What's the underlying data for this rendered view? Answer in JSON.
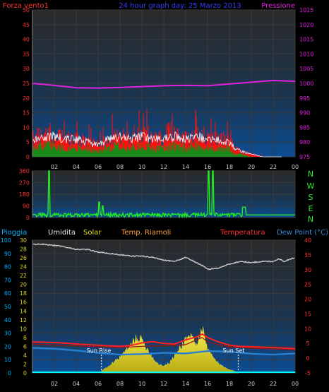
{
  "header": {
    "left_label": "Forza vento1",
    "title": "24 hour graph day:  25 Marzo 2013",
    "right_label": "Pressione"
  },
  "compass": [
    "N",
    "W",
    "S",
    "E",
    "N"
  ],
  "bottom_legend": {
    "pioggia": "Pioggia",
    "umidita": "Umidita",
    "solar": "Solar",
    "temp_riamoli": "Temp. Riamoli",
    "temperatura": "Temperatura",
    "dew_point": "Dew Point (°C)"
  },
  "annotations": {
    "sun_rise": "Sun Rise",
    "sun_set": "Sun Set"
  },
  "colors": {
    "wind": "#ff1010",
    "gust": "#ffffff",
    "wind_avg": "#1a8a1a",
    "pressure": "#e020e0",
    "direction": "#22ee22",
    "humidity": "#c8c8c8",
    "solar": "#e6e020",
    "temperature": "#ff2020",
    "dew_point": "#2a80d0",
    "rain": "#00ffff",
    "left_axis": "#ff3030",
    "right_axis": "#e020e0",
    "temp_axis": "#ff3030",
    "pioggia_axis": "#00b0ff",
    "solar_axis": "#e0d020"
  },
  "chart_data": [
    {
      "type": "line",
      "name": "wind-pressure",
      "x_ticks": [
        "02",
        "04",
        "06",
        "08",
        "10",
        "12",
        "14",
        "16",
        "18",
        "20",
        "22",
        "00"
      ],
      "y_left": {
        "ticks": [
          0,
          5,
          10,
          15,
          20,
          25,
          30,
          35,
          40,
          45,
          50
        ],
        "range": [
          0,
          50
        ]
      },
      "y_right": {
        "ticks": [
          975,
          980,
          985,
          990,
          995,
          1000,
          1005,
          1010,
          1015,
          1020,
          1025
        ],
        "range": [
          975,
          1025
        ]
      },
      "pressure": {
        "hours": [
          0,
          2,
          4,
          6,
          8,
          10,
          12,
          14,
          16,
          18,
          20,
          22,
          24
        ],
        "values": [
          1000.0,
          999.3,
          998.5,
          998.4,
          998.6,
          998.9,
          999.2,
          999.3,
          999.2,
          999.8,
          1000.4,
          1001.0,
          1000.7
        ]
      },
      "wind_profile": {
        "hours": [
          0,
          1,
          2,
          3,
          4,
          5,
          6,
          7,
          8,
          9,
          10,
          11,
          12,
          13,
          14,
          15,
          16,
          17,
          18,
          18.5,
          19,
          20,
          21,
          22,
          23,
          24
        ],
        "gust": [
          6,
          7,
          7,
          6,
          6,
          5,
          4,
          6,
          7,
          6,
          7,
          6,
          6,
          7,
          6,
          7,
          6,
          6,
          5,
          3,
          2,
          1,
          0,
          0,
          0,
          0
        ],
        "average": [
          3,
          4,
          4,
          3,
          3,
          3,
          2,
          3,
          4,
          3,
          4,
          3,
          3,
          4,
          3,
          4,
          3,
          3,
          3,
          1,
          1,
          0,
          0,
          0,
          0,
          0
        ],
        "max_spike": [
          15,
          14,
          16,
          15,
          14,
          11,
          14,
          20,
          16,
          17,
          18,
          15,
          14,
          16,
          15,
          18,
          14,
          15,
          12,
          5,
          3,
          2,
          1,
          1,
          0,
          0
        ]
      }
    },
    {
      "type": "line",
      "name": "wind-direction",
      "y_ticks": [
        0,
        90,
        180,
        270,
        360
      ],
      "range": [
        0,
        360
      ],
      "baseline_deg": 20,
      "spikes": [
        {
          "hour": 1.5,
          "value": 360
        },
        {
          "hour": 6.1,
          "value": 120
        },
        {
          "hour": 6.4,
          "value": 90
        },
        {
          "hour": 16.1,
          "value": 360
        },
        {
          "hour": 16.5,
          "value": 360
        }
      ],
      "after_hour": 19.2,
      "after_value": 0
    },
    {
      "type": "line",
      "name": "temp-humidity-solar-rain",
      "y_pioggia": {
        "ticks": [
          0,
          10,
          20,
          30,
          40,
          50,
          60,
          70,
          80,
          90,
          100
        ],
        "range": [
          0,
          100
        ]
      },
      "y_solar": {
        "ticks": [
          0,
          2,
          4,
          6,
          8,
          10,
          12,
          14,
          16,
          18,
          20,
          22,
          24,
          26,
          28,
          30
        ],
        "range": [
          0,
          30
        ]
      },
      "y_temp": {
        "ticks": [
          -5,
          0,
          5,
          10,
          15,
          20,
          25,
          30,
          35,
          40
        ],
        "range": [
          -5,
          40
        ]
      },
      "humidity": {
        "hours": [
          0,
          1,
          2,
          3,
          4,
          5,
          6,
          7,
          8,
          9,
          10,
          11,
          12,
          13,
          14,
          15,
          15.5,
          16,
          17,
          18,
          19,
          20,
          21,
          22,
          22.5,
          23,
          24
        ],
        "values": [
          97,
          97,
          96,
          95,
          93,
          93,
          91,
          90,
          89,
          88,
          88,
          87,
          85,
          84,
          87,
          83,
          81,
          78,
          79,
          82,
          84,
          83,
          84,
          84,
          86,
          84,
          87
        ]
      },
      "temperature": {
        "hours": [
          0,
          1,
          2,
          3,
          4,
          5,
          6,
          7,
          8,
          9,
          10,
          11,
          12,
          13,
          14,
          15,
          15.5,
          16,
          17,
          18,
          19,
          20,
          21,
          22,
          23,
          24
        ],
        "values": [
          5.5,
          5.4,
          5.3,
          5.1,
          4.8,
          4.6,
          4.4,
          4.2,
          4.0,
          4.3,
          5.2,
          5.6,
          5.0,
          4.8,
          6.2,
          7.2,
          8.2,
          7.0,
          5.5,
          4.4,
          4.0,
          3.9,
          3.7,
          3.6,
          3.4,
          3.2
        ]
      },
      "temp_riamoli": {
        "hours": [
          0,
          4,
          8,
          10,
          12,
          14,
          15.5,
          16,
          18,
          20,
          24
        ],
        "values": [
          4.8,
          4.2,
          3.6,
          4.0,
          4.2,
          4.6,
          7.0,
          5.5,
          3.8,
          3.4,
          2.8
        ]
      },
      "dew_point": {
        "hours": [
          0,
          2,
          4,
          6,
          8,
          10,
          12,
          14,
          16,
          18,
          20,
          22,
          24
        ],
        "values": [
          3.5,
          3.2,
          2.6,
          1.8,
          1.2,
          1.4,
          1.8,
          1.6,
          2.4,
          2.2,
          1.5,
          1.2,
          1.6
        ]
      },
      "solar": {
        "hours": [
          6.3,
          7,
          8,
          9,
          9.5,
          10,
          10.5,
          11,
          11.5,
          12,
          12.5,
          13,
          14,
          14.5,
          15,
          15.5,
          16,
          16.5,
          17,
          18,
          18.8
        ],
        "values": [
          0.5,
          1.5,
          3.5,
          6.2,
          8.0,
          7.3,
          5.4,
          3.4,
          2.0,
          1.6,
          2.2,
          3.8,
          7.5,
          8.6,
          6.1,
          10.0,
          5.2,
          3.6,
          2.0,
          0.8,
          0
        ]
      },
      "rain": {
        "value": 0
      },
      "sun_rise_hour": 6.3,
      "sun_set_hour": 18.8
    }
  ]
}
